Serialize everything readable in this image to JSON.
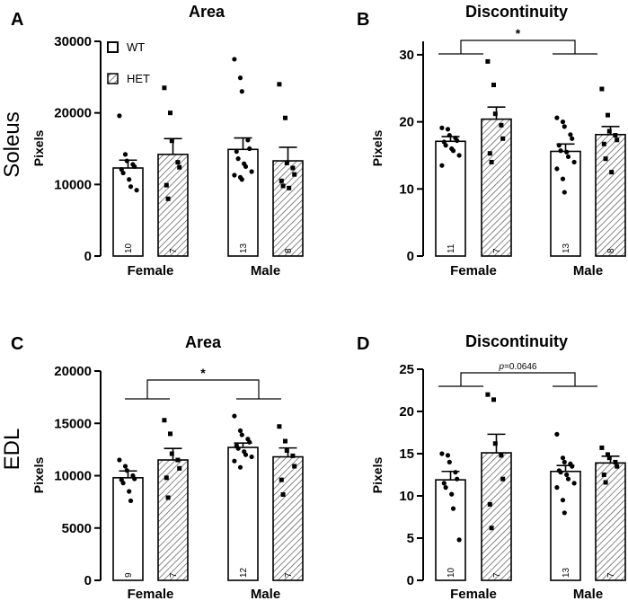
{
  "figure": {
    "row_labels": [
      "Soleus",
      "EDL"
    ],
    "legend": [
      {
        "key": "wt",
        "label": "WT"
      },
      {
        "key": "het",
        "label": "HET"
      }
    ]
  },
  "chart_data": [
    {
      "panel": "A",
      "type": "bar",
      "title": "Area",
      "ylabel": "Pixels",
      "ylim": [
        0,
        30000
      ],
      "yticks": [
        0,
        10000,
        20000,
        30000
      ],
      "categories": [
        "Female",
        "Male"
      ],
      "series": [
        {
          "name": "WT",
          "means": [
            12300,
            14900
          ],
          "sem": [
            1100,
            1600
          ],
          "n": [
            10,
            13
          ],
          "points": [
            [
              19600,
              14200,
              13300,
              12800,
              12500,
              12100,
              11600,
              10700,
              9700,
              9200
            ],
            [
              27500,
              24900,
              23000,
              16200,
              15000,
              14600,
              13600,
              12900,
              12500,
              11800,
              11300,
              11000,
              10700
            ]
          ]
        },
        {
          "name": "HET",
          "means": [
            14200,
            13300
          ],
          "sem": [
            2200,
            1900
          ],
          "n": [
            7,
            8
          ],
          "points": [
            [
              23500,
              20000,
              16100,
              13100,
              12400,
              9900,
              8000
            ],
            [
              24000,
              19300,
              13000,
              12300,
              11400,
              10500,
              9800,
              9500
            ]
          ]
        }
      ]
    },
    {
      "panel": "B",
      "type": "bar",
      "title": "Discontinuity",
      "ylabel": "Pixels",
      "ylim": [
        0,
        32
      ],
      "yticks": [
        0,
        10,
        20,
        30
      ],
      "categories": [
        "Female",
        "Male"
      ],
      "significance": {
        "label": "*"
      },
      "series": [
        {
          "name": "WT",
          "means": [
            17.1,
            15.6
          ],
          "sem": [
            0.7,
            1.1
          ],
          "n": [
            11,
            13
          ],
          "points": [
            [
              19.1,
              18.9,
              18.0,
              17.6,
              17.2,
              17.0,
              16.5,
              16.0,
              15.7,
              15.0,
              13.5
            ],
            [
              20.6,
              20.0,
              19.3,
              18.1,
              17.5,
              16.5,
              15.7,
              15.5,
              14.8,
              14.0,
              13.0,
              11.5,
              9.5
            ]
          ]
        },
        {
          "name": "HET",
          "means": [
            20.4,
            18.1
          ],
          "sem": [
            1.8,
            1.2
          ],
          "n": [
            7,
            8
          ],
          "points": [
            [
              29.0,
              25.5,
              21.2,
              19.5,
              17.5,
              15.3,
              14.0
            ],
            [
              24.9,
              21.0,
              18.6,
              18.0,
              17.3,
              16.7,
              14.5,
              12.5
            ]
          ]
        }
      ]
    },
    {
      "panel": "C",
      "type": "bar",
      "title": "Area",
      "ylabel": "Pixels",
      "ylim": [
        0,
        20000
      ],
      "yticks": [
        0,
        5000,
        10000,
        15000,
        20000
      ],
      "categories": [
        "Female",
        "Male"
      ],
      "significance": {
        "label": "*"
      },
      "series": [
        {
          "name": "WT",
          "means": [
            9800,
            12700
          ],
          "sem": [
            650,
            420
          ],
          "n": [
            9,
            12
          ],
          "points": [
            [
              11500,
              10900,
              10500,
              10000,
              9700,
              9600,
              9300,
              8500,
              7600
            ],
            [
              15700,
              14300,
              13900,
              13500,
              13200,
              12900,
              12600,
              12300,
              12000,
              11800,
              11400,
              10800
            ]
          ]
        },
        {
          "name": "HET",
          "means": [
            11500,
            11800
          ],
          "sem": [
            1100,
            850
          ],
          "n": [
            7,
            7
          ],
          "points": [
            [
              15300,
              14000,
              12100,
              11500,
              10700,
              9800,
              7900
            ],
            [
              14700,
              13300,
              12400,
              11900,
              10900,
              9600,
              8200
            ]
          ]
        }
      ]
    },
    {
      "panel": "D",
      "type": "bar",
      "title": "Discontinuity",
      "ylabel": "Pixels",
      "ylim": [
        0,
        25
      ],
      "yticks": [
        0,
        5,
        10,
        15,
        20,
        25
      ],
      "categories": [
        "Female",
        "Male"
      ],
      "significance": {
        "label": "p=0.0646"
      },
      "series": [
        {
          "name": "WT",
          "means": [
            11.9,
            12.9
          ],
          "sem": [
            1.0,
            0.7
          ],
          "n": [
            10,
            13
          ],
          "points": [
            [
              15.0,
              14.8,
              14.0,
              12.8,
              12.0,
              11.5,
              11.0,
              10.2,
              8.5,
              4.8
            ],
            [
              17.3,
              14.5,
              14.0,
              13.8,
              13.5,
              13.0,
              12.8,
              12.5,
              12.0,
              11.5,
              11.0,
              9.5,
              8.0
            ]
          ]
        },
        {
          "name": "HET",
          "means": [
            15.1,
            13.9
          ],
          "sem": [
            2.2,
            0.8
          ],
          "n": [
            7,
            7
          ],
          "points": [
            [
              22.0,
              21.4,
              16.2,
              14.8,
              12.0,
              9.0,
              6.2
            ],
            [
              15.7,
              14.9,
              14.5,
              14.0,
              13.5,
              12.5,
              11.6
            ]
          ]
        }
      ]
    }
  ]
}
